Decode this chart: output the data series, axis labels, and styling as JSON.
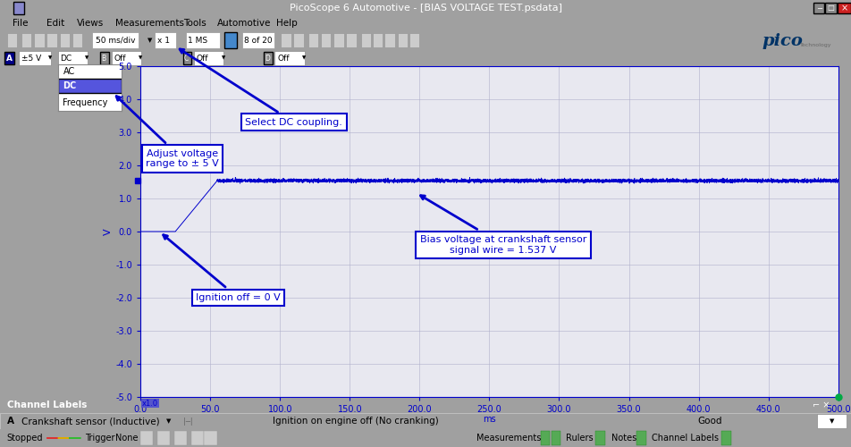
{
  "title": "PicoScope 6 Automotive - [BIAS VOLTAGE TEST.psdata]",
  "bg_outer": "#a0a0a0",
  "bg_window": "#d4d0c8",
  "bg_toolbar": "#e8e4dc",
  "bg_plot": "#e8e8f0",
  "bg_channel_bar": "#2d3a6b",
  "bg_channel_row": "#f8f8f8",
  "bg_status": "#d4d0c8",
  "grid_color": "#b0b0cc",
  "signal_color": "#0000cc",
  "annot_color": "#0000cc",
  "xlim": [
    0,
    500
  ],
  "ylim": [
    -5.0,
    5.0
  ],
  "yticks": [
    -5.0,
    -4.0,
    -3.0,
    -2.0,
    -1.0,
    0.0,
    1.0,
    2.0,
    3.0,
    4.0,
    5.0
  ],
  "xticks": [
    0,
    50,
    100,
    150,
    200,
    250,
    300,
    350,
    400,
    450,
    500
  ],
  "xlabel": "ms",
  "ylabel": "V",
  "bias_voltage": 1.537,
  "step_x": 25,
  "rise_end_x": 55,
  "noise_amplitude": 0.025,
  "menubar_items": [
    "File",
    "Edit",
    "Views",
    "Measurements",
    "Tools",
    "Automotive",
    "Help"
  ],
  "channel_label_a": "Crankshaft sensor (Inductive)",
  "channel_desc": "Ignition on engine off (No cranking)",
  "channel_status": "Good",
  "measurement_value": "1.537 V",
  "pico_logo_color": "#003366"
}
